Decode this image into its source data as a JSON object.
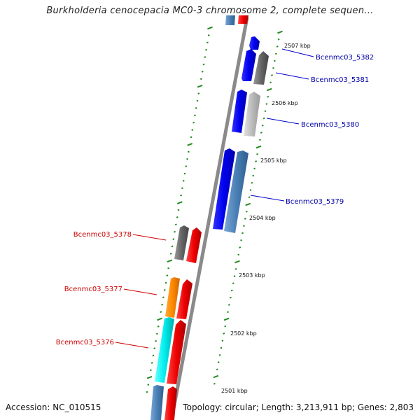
{
  "title": "Burkholderia cenocepacia MC0-3 chromosome 2, complete sequen...",
  "footer": {
    "accession": "Accession: NC_010515",
    "summary": "Topology: circular; Length: 3,213,911 bp; Genes: 2,803"
  },
  "scale_labels": [
    "2507 kbp",
    "2506 kbp",
    "2505 kbp",
    "2504 kbp",
    "2503 kbp",
    "2502 kbp",
    "2501 kbp"
  ],
  "gene_labels": {
    "right": [
      "Bcenmc03_5382",
      "Bcenmc03_5381",
      "Bcenmc03_5380",
      "Bcenmc03_5379"
    ],
    "left": [
      "Bcenmc03_5378",
      "Bcenmc03_5377",
      "Bcenmc03_5376"
    ]
  },
  "colors": {
    "blue": "#0000ee",
    "steel_blue": "#4a7fb5",
    "red": "#ee0000",
    "dark_gray": "#666666",
    "light_gray": "#bbbbbb",
    "orange": "#ff8800",
    "cyan": "#00eeee",
    "tick_green": "#228b22",
    "right_label": "#0000aa",
    "left_label": "#cc0000"
  }
}
